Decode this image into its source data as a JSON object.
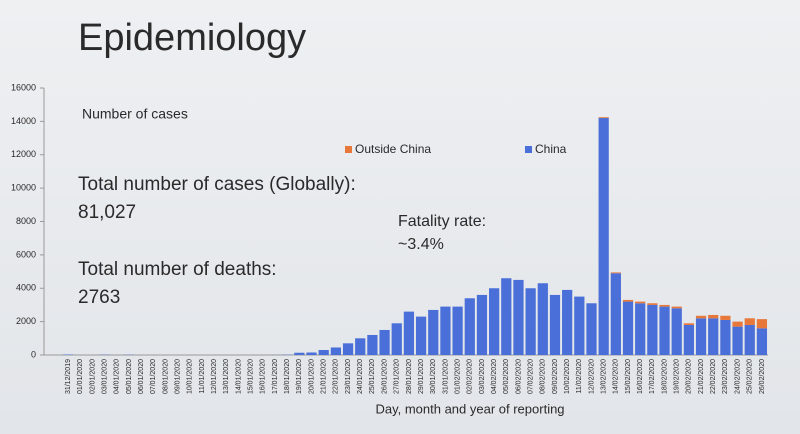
{
  "chart_data": {
    "type": "stacked_bar",
    "title": "Epidemiology",
    "subtitle": "Number of cases",
    "xlabel": "Day, month and year of reporting",
    "annotations": [
      "Total number of cases (Globally):",
      "81,027",
      "Total number of deaths:",
      "2763",
      "Fatality rate:",
      "~3.4%"
    ],
    "categories": [
      "31/12/2019",
      "01/01/2020",
      "02/01/2020",
      "03/01/2020",
      "04/01/2020",
      "05/01/2020",
      "06/01/2020",
      "07/01/2020",
      "08/01/2020",
      "09/01/2020",
      "10/01/2020",
      "11/01/2020",
      "12/01/2020",
      "13/01/2020",
      "14/01/2020",
      "15/01/2020",
      "16/01/2020",
      "17/01/2020",
      "18/01/2020",
      "19/01/2020",
      "20/01/2020",
      "21/01/2020",
      "22/01/2020",
      "23/01/2020",
      "24/01/2020",
      "25/01/2020",
      "26/01/2020",
      "27/01/2020",
      "28/01/2020",
      "29/01/2020",
      "30/01/2020",
      "31/01/2020",
      "01/02/2020",
      "02/02/2020",
      "03/02/2020",
      "04/02/2020",
      "05/02/2020",
      "06/02/2020",
      "07/02/2020",
      "08/02/2020",
      "09/02/2020",
      "10/02/2020",
      "11/02/2020",
      "12/02/2020",
      "13/02/2020",
      "14/02/2020",
      "15/02/2020",
      "16/02/2020",
      "17/02/2020",
      "18/02/2020",
      "19/02/2020",
      "20/02/2020",
      "21/02/2020",
      "22/02/2020",
      "23/02/2020",
      "24/02/2020",
      "25/02/2020",
      "26/02/2020"
    ],
    "series": [
      {
        "name": "China",
        "color": "#4a6fd8",
        "values": [
          27,
          0,
          0,
          17,
          0,
          15,
          0,
          0,
          0,
          0,
          0,
          0,
          0,
          0,
          0,
          0,
          0,
          4,
          17,
          136,
          150,
          300,
          450,
          700,
          1000,
          1200,
          1500,
          1900,
          2600,
          2300,
          2700,
          2900,
          2900,
          3400,
          3600,
          4000,
          4600,
          4500,
          4000,
          4300,
          3600,
          3900,
          3500,
          3100,
          14200,
          4900,
          3200,
          3100,
          3000,
          2900,
          2800,
          1800,
          2200,
          2200,
          2100,
          1700,
          1800,
          1600
        ]
      },
      {
        "name": "Outside China",
        "color": "#e8773a",
        "values": [
          0,
          0,
          0,
          0,
          0,
          0,
          0,
          0,
          0,
          0,
          0,
          0,
          0,
          0,
          0,
          0,
          0,
          0,
          0,
          0,
          0,
          0,
          0,
          0,
          0,
          0,
          0,
          0,
          0,
          0,
          0,
          0,
          0,
          0,
          0,
          0,
          0,
          0,
          0,
          0,
          0,
          0,
          0,
          0,
          50,
          50,
          100,
          100,
          100,
          100,
          100,
          100,
          150,
          200,
          250,
          300,
          400,
          550
        ]
      }
    ],
    "ylim": [
      0,
      16000
    ],
    "yticks": [
      0,
      2000,
      4000,
      6000,
      8000,
      10000,
      12000,
      14000,
      16000
    ]
  }
}
